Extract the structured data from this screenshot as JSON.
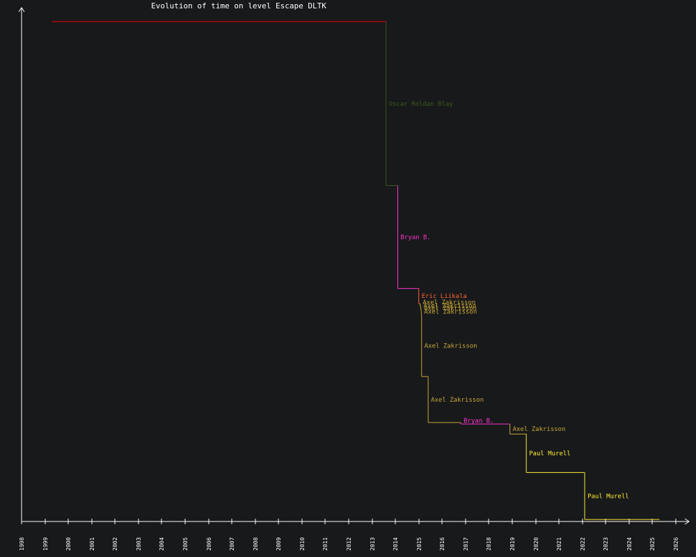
{
  "chart_data": {
    "type": "line",
    "title": "Evolution of time on level Escape DLTK",
    "xlabel": "",
    "ylabel": "",
    "x_ticks": [
      "1998",
      "1999",
      "2000",
      "2001",
      "2002",
      "2003",
      "2004",
      "2005",
      "2006",
      "2007",
      "2008",
      "2009",
      "2010",
      "2011",
      "2012",
      "2013",
      "2014",
      "2015",
      "2016",
      "2017",
      "2018",
      "2019",
      "2020",
      "2021",
      "2022",
      "2023",
      "2024",
      "2025",
      "2026"
    ],
    "xlim": [
      1998.0,
      2026.0
    ],
    "y_axis_numbers_shown": false,
    "grid": false,
    "legend": "none",
    "baseline_color": "#ff0000",
    "baseline_start": 1999.3,
    "records": [
      {
        "holder": "Oscar Roldan Blay",
        "date": 2013.6,
        "value": 0.672,
        "color": "#3a5a1c"
      },
      {
        "holder": "Bryan B.",
        "date": 2014.1,
        "value": 0.466,
        "color": "#ff33cc"
      },
      {
        "holder": "Eric Liikala",
        "date": 2015.0,
        "value": 0.436,
        "color": "#ff6633"
      },
      {
        "holder": "Axel Zakrisson",
        "date": 2015.05,
        "value": 0.432,
        "color": "#c8a838"
      },
      {
        "holder": "Axel Zakrisson",
        "date": 2015.08,
        "value": 0.425,
        "color": "#c8a838"
      },
      {
        "holder": "Axel Zakrisson",
        "date": 2015.1,
        "value": 0.42,
        "color": "#c8a838"
      },
      {
        "holder": "Axel Zakrisson",
        "date": 2015.11,
        "value": 0.413,
        "color": "#c8a838"
      },
      {
        "holder": "Axel Zakrisson",
        "date": 2015.12,
        "value": 0.29,
        "color": "#c8a838"
      },
      {
        "holder": "Axel Zakrisson",
        "date": 2015.4,
        "value": 0.198,
        "color": "#c8a838"
      },
      {
        "holder": "Bryan B.",
        "date": 2016.8,
        "value": 0.195,
        "color": "#ff33cc"
      },
      {
        "holder": "Axel Zakrisson",
        "date": 2018.9,
        "value": 0.175,
        "color": "#c8a838"
      },
      {
        "holder": "Paul Murell",
        "date": 2019.6,
        "value": 0.098,
        "color": "#ffee33"
      },
      {
        "holder": "Paul Murell",
        "date": 2022.1,
        "value": 0.004,
        "color": "#ffee33"
      }
    ],
    "end_date": 2025.3
  }
}
